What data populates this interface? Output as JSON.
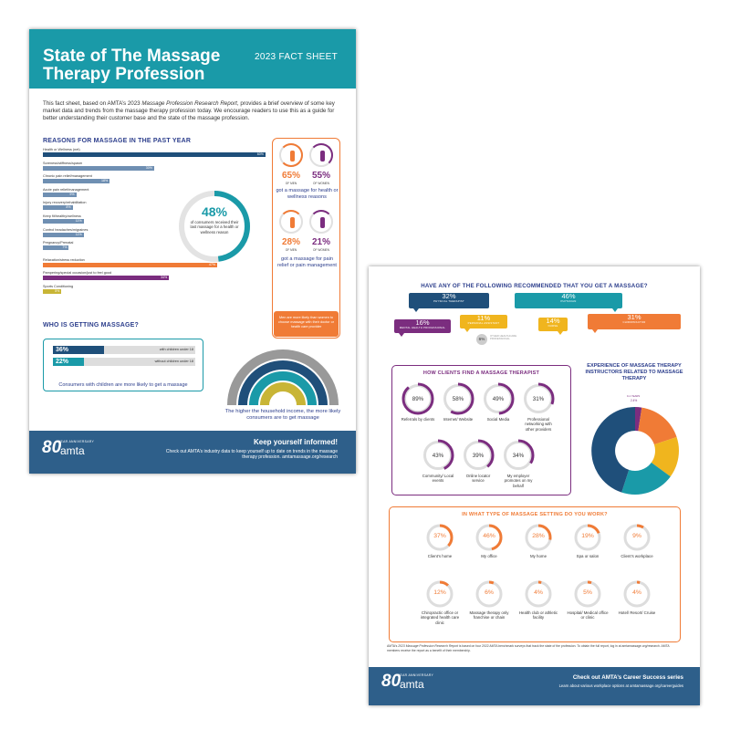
{
  "page1": {
    "title": "State of The Massage Therapy Profession",
    "subtitle": "2023 FACT SHEET",
    "intro_a": "This fact sheet, based on AMTA’s 2023 ",
    "intro_em": "Massage Profession Research Report",
    "intro_b": ", provides a brief overview of some key market data and trends from the massage therapy profession today. We encourage readers to use this as a guide for better understanding their customer base and the state of the massage profession.",
    "reasons_title": "REASONS FOR MASSAGE IN THE PAST YEAR",
    "ring": {
      "pct": "48%",
      "text": "of consumers received their last massage for a health or wellness reason",
      "value": 48
    },
    "gender": {
      "health_men": "65%",
      "health_men_label": "OF MEN",
      "health_women": "55%",
      "health_women_label": "OF WOMEN",
      "health_caption": "got a massage for health or wellness reasons",
      "pain_men": "28%",
      "pain_men_label": "OF MEN",
      "pain_women": "21%",
      "pain_women_label": "OF WOMEN",
      "pain_caption": "got a massage for pain relief or pain management",
      "footnote": "Men are more likely than women to choose massage with their doctor or health care provider"
    },
    "who_title": "WHO IS GETTING MASSAGE?",
    "who": {
      "with_pct": "36%",
      "with_label": "with children under 18",
      "with_value": 36,
      "without_pct": "22%",
      "without_label": "without children under 18",
      "without_value": 22,
      "note": "Consumers with children are more likely to get a massage"
    },
    "income_caption": "The higher the household income, the more likely consumers are to get massage",
    "footer": {
      "logo_num": "80",
      "logo_ann": "YEAR ANNIVERSARY",
      "logo_name": "amta",
      "heading": "Keep yourself informed!",
      "text": "Check out AMTA’s industry data to keep yourself up to date on trends in the massage therapy profession. amtamassage.org/research"
    }
  },
  "reason_bars": [
    {
      "label": "Health or Wellness (net)",
      "value": 60,
      "pct": "60%",
      "color": "#1f4f7a"
    },
    {
      "label": "Soreness/stiffness/spasm",
      "value": 30,
      "pct": "30%",
      "color": "#6f8fb2"
    },
    {
      "label": "Chronic pain relief/management",
      "value": 18,
      "pct": "18%",
      "color": "#6f8fb2"
    },
    {
      "label": "Acute pain relief/management",
      "value": 9,
      "pct": "9%",
      "color": "#6f8fb2"
    },
    {
      "label": "Injury recovery/rehabilitation",
      "value": 8,
      "pct": "8%",
      "color": "#6f8fb2"
    },
    {
      "label": "Keep fit/healthy/wellness",
      "value": 11,
      "pct": "11%",
      "color": "#6f8fb2"
    },
    {
      "label": "Control headaches/migraines",
      "value": 11,
      "pct": "11%",
      "color": "#6f8fb2"
    },
    {
      "label": "Pregnancy/Prenatal",
      "value": 7,
      "pct": "7%",
      "color": "#6f8fb2"
    },
    {
      "label": "Relaxation/stress reduction",
      "value": 47,
      "pct": "47%",
      "color": "#f07b36"
    },
    {
      "label": "Pampering/special occasion/just to feel good",
      "value": 34,
      "pct": "34%",
      "color": "#7b2d7f"
    },
    {
      "label": "Sports Conditioning",
      "value": 5,
      "pct": "5%",
      "color": "#c8b536"
    }
  ],
  "page2": {
    "rec_title": "HAVE ANY OF THE FOLLOWING RECOMMENDED THAT YOU GET A MASSAGE?",
    "bubbles": [
      {
        "pct": "32%",
        "label": "PHYSICAL THERAPIST",
        "color": "#1f4f7a"
      },
      {
        "pct": "46%",
        "label": "PHYSICIAN",
        "color": "#1a9aa8"
      },
      {
        "pct": "16%",
        "label": "MENTAL HEALTH PROFESSIONAL",
        "color": "#7b2d7f"
      },
      {
        "pct": "11%",
        "label": "PERSONAL ASSISTANT",
        "color": "#f0b51e"
      },
      {
        "pct": "14%",
        "label": "NURSE",
        "color": "#f0b51e"
      },
      {
        "pct": "31%",
        "label": "CHIROPRACTOR",
        "color": "#f07b36"
      },
      {
        "pct": "6%",
        "label": "OTHER HEALTHCARE PROFESSIONAL",
        "color": "#999999"
      }
    ],
    "find_title": "HOW CLIENTS FIND A MASSAGE THERAPIST",
    "find": [
      {
        "pct": "89%",
        "value": 89,
        "label": "Referrals by clients"
      },
      {
        "pct": "58%",
        "value": 58,
        "label": "Internet/ Website"
      },
      {
        "pct": "49%",
        "value": 49,
        "label": "Social Media"
      },
      {
        "pct": "31%",
        "value": 31,
        "label": "Professional networking with other providers"
      },
      {
        "pct": "43%",
        "value": 43,
        "label": "Community/ Local events"
      },
      {
        "pct": "39%",
        "value": 39,
        "label": "Online locator service"
      },
      {
        "pct": "34%",
        "value": 34,
        "label": "My employer promotes on my behalf"
      }
    ],
    "exp_title": "EXPERIENCE OF MASSAGE THERAPY INSTRUCTORS RELATED TO MASSAGE THERAPY",
    "exp_legend_top": "0-1 YEARS",
    "exp_legend_top_pct": "2.4%",
    "setting_title": "IN WHAT TYPE OF MASSAGE SETTING DO YOU WORK?",
    "settings": [
      {
        "pct": "37%",
        "value": 37,
        "label": "Client’s home",
        "icon": "house-icon"
      },
      {
        "pct": "46%",
        "value": 46,
        "label": "My office",
        "icon": "office-icon"
      },
      {
        "pct": "28%",
        "value": 28,
        "label": "My home",
        "icon": "home-icon"
      },
      {
        "pct": "19%",
        "value": 19,
        "label": "Spa or salon",
        "icon": "spa-icon"
      },
      {
        "pct": "9%",
        "value": 9,
        "label": "Client’s workplace",
        "icon": "building-icon"
      },
      {
        "pct": "12%",
        "value": 12,
        "label": "Chiropractic office or integrated health care clinic",
        "icon": "spine-icon"
      },
      {
        "pct": "6%",
        "value": 6,
        "label": "Massage therapy only franchise or chain",
        "icon": "hands-icon"
      },
      {
        "pct": "4%",
        "value": 4,
        "label": "Health club or athletic facility",
        "icon": "dumbbell-icon"
      },
      {
        "pct": "5%",
        "value": 5,
        "label": "Hospital/ Medical office or clinic",
        "icon": "cross-icon"
      },
      {
        "pct": "4%",
        "value": 4,
        "label": "Hotel/ Resort/ Cruise",
        "icon": "palm-icon"
      }
    ],
    "note_a": "AMTA’s ",
    "note_em": "2023 Massage Profession Research Report",
    "note_b": " is based on four 2022 AMTA benchmark surveys that track the state of the profession. To obtain the full report, log in at amtamassage.org/research. AMTA members receive the report as a benefit of their membership.",
    "footer": {
      "heading": "Check out AMTA’s Career Success series",
      "text": "Learn about various workplace options at amtamassage.org/careerguides"
    }
  },
  "colors": {
    "teal": "#1a9aa8",
    "navy": "#1f4f7a",
    "orange": "#f07b36",
    "purple": "#7b2d7f",
    "gold": "#c8b536",
    "footer": "#2e5f8a"
  }
}
